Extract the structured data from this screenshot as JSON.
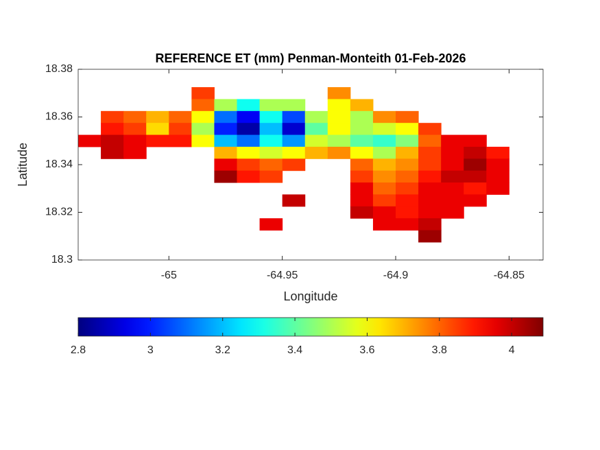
{
  "chart_data": {
    "type": "heatmap",
    "title": "REFERENCE ET (mm) Penman-Monteith 01-Feb-2026",
    "x_label": "Longitude",
    "y_label": "Latitude",
    "xlim": [
      -65.04,
      -64.835
    ],
    "ylim": [
      18.3,
      18.38
    ],
    "xticks": [
      -65,
      -64.95,
      -64.9,
      -64.85
    ],
    "yticks": [
      18.3,
      18.32,
      18.34,
      18.36,
      18.38
    ],
    "colormap": "jet",
    "clim": [
      2.8,
      4.087
    ],
    "colorbar_ticks": [
      2.8,
      3,
      3.2,
      3.4,
      3.6,
      3.8,
      4
    ],
    "x": [
      -65.035,
      -65.025,
      -65.015,
      -65.005,
      -64.995,
      -64.985,
      -64.975,
      -64.965,
      -64.955,
      -64.945,
      -64.935,
      -64.925,
      -64.915,
      -64.905,
      -64.895,
      -64.885,
      -64.875,
      -64.865,
      -64.855,
      -64.845
    ],
    "y": [
      18.37,
      18.365,
      18.36,
      18.355,
      18.35,
      18.345,
      18.34,
      18.335,
      18.33,
      18.325,
      18.32,
      18.315,
      18.31
    ],
    "z": [
      [
        null,
        null,
        null,
        null,
        null,
        3.85,
        null,
        null,
        null,
        null,
        null,
        3.75,
        null,
        null,
        null,
        null,
        null,
        null,
        null,
        null
      ],
      [
        null,
        null,
        null,
        null,
        null,
        3.8,
        3.5,
        3.3,
        3.5,
        3.5,
        null,
        3.6,
        3.7,
        null,
        null,
        null,
        null,
        null,
        null,
        null
      ],
      [
        null,
        3.85,
        3.8,
        3.7,
        3.8,
        3.6,
        3.1,
        2.95,
        3.3,
        3.05,
        3.5,
        3.6,
        3.5,
        3.75,
        3.8,
        null,
        null,
        null,
        null,
        null
      ],
      [
        null,
        3.9,
        3.85,
        3.65,
        3.85,
        3.5,
        3.0,
        2.85,
        3.2,
        2.9,
        3.4,
        3.6,
        3.5,
        3.55,
        3.6,
        3.85,
        null,
        null,
        null,
        null
      ],
      [
        3.95,
        4.0,
        3.95,
        3.9,
        3.9,
        3.6,
        3.2,
        3.1,
        3.3,
        3.15,
        3.55,
        3.5,
        3.4,
        3.35,
        3.45,
        3.8,
        3.95,
        3.95,
        null,
        null
      ],
      [
        null,
        4.0,
        3.95,
        null,
        null,
        null,
        3.7,
        3.6,
        3.55,
        3.6,
        3.7,
        3.75,
        3.6,
        3.5,
        3.7,
        3.85,
        3.95,
        4.0,
        3.9,
        null
      ],
      [
        null,
        null,
        null,
        null,
        null,
        null,
        3.95,
        3.85,
        3.8,
        3.85,
        null,
        null,
        3.8,
        3.7,
        3.75,
        3.85,
        3.95,
        4.05,
        3.95,
        null
      ],
      [
        null,
        null,
        null,
        null,
        null,
        null,
        4.05,
        3.9,
        3.85,
        null,
        null,
        null,
        3.85,
        3.75,
        3.8,
        3.9,
        4.0,
        4.0,
        3.95,
        null
      ],
      [
        null,
        null,
        null,
        null,
        null,
        null,
        null,
        null,
        null,
        null,
        null,
        null,
        3.95,
        3.8,
        3.85,
        3.95,
        3.95,
        3.9,
        3.95,
        null
      ],
      [
        null,
        null,
        null,
        null,
        null,
        null,
        null,
        null,
        null,
        4.0,
        null,
        null,
        3.95,
        3.85,
        3.9,
        3.95,
        3.95,
        3.95,
        null,
        null
      ],
      [
        null,
        null,
        null,
        null,
        null,
        null,
        null,
        null,
        null,
        null,
        null,
        null,
        4.0,
        3.95,
        3.9,
        3.95,
        3.95,
        null,
        null,
        null
      ],
      [
        null,
        null,
        null,
        null,
        null,
        null,
        null,
        null,
        3.95,
        null,
        null,
        null,
        null,
        3.95,
        3.95,
        4.0,
        null,
        null,
        null,
        null
      ],
      [
        null,
        null,
        null,
        null,
        null,
        null,
        null,
        null,
        null,
        null,
        null,
        null,
        null,
        null,
        null,
        4.05,
        null,
        null,
        null,
        null
      ]
    ]
  }
}
